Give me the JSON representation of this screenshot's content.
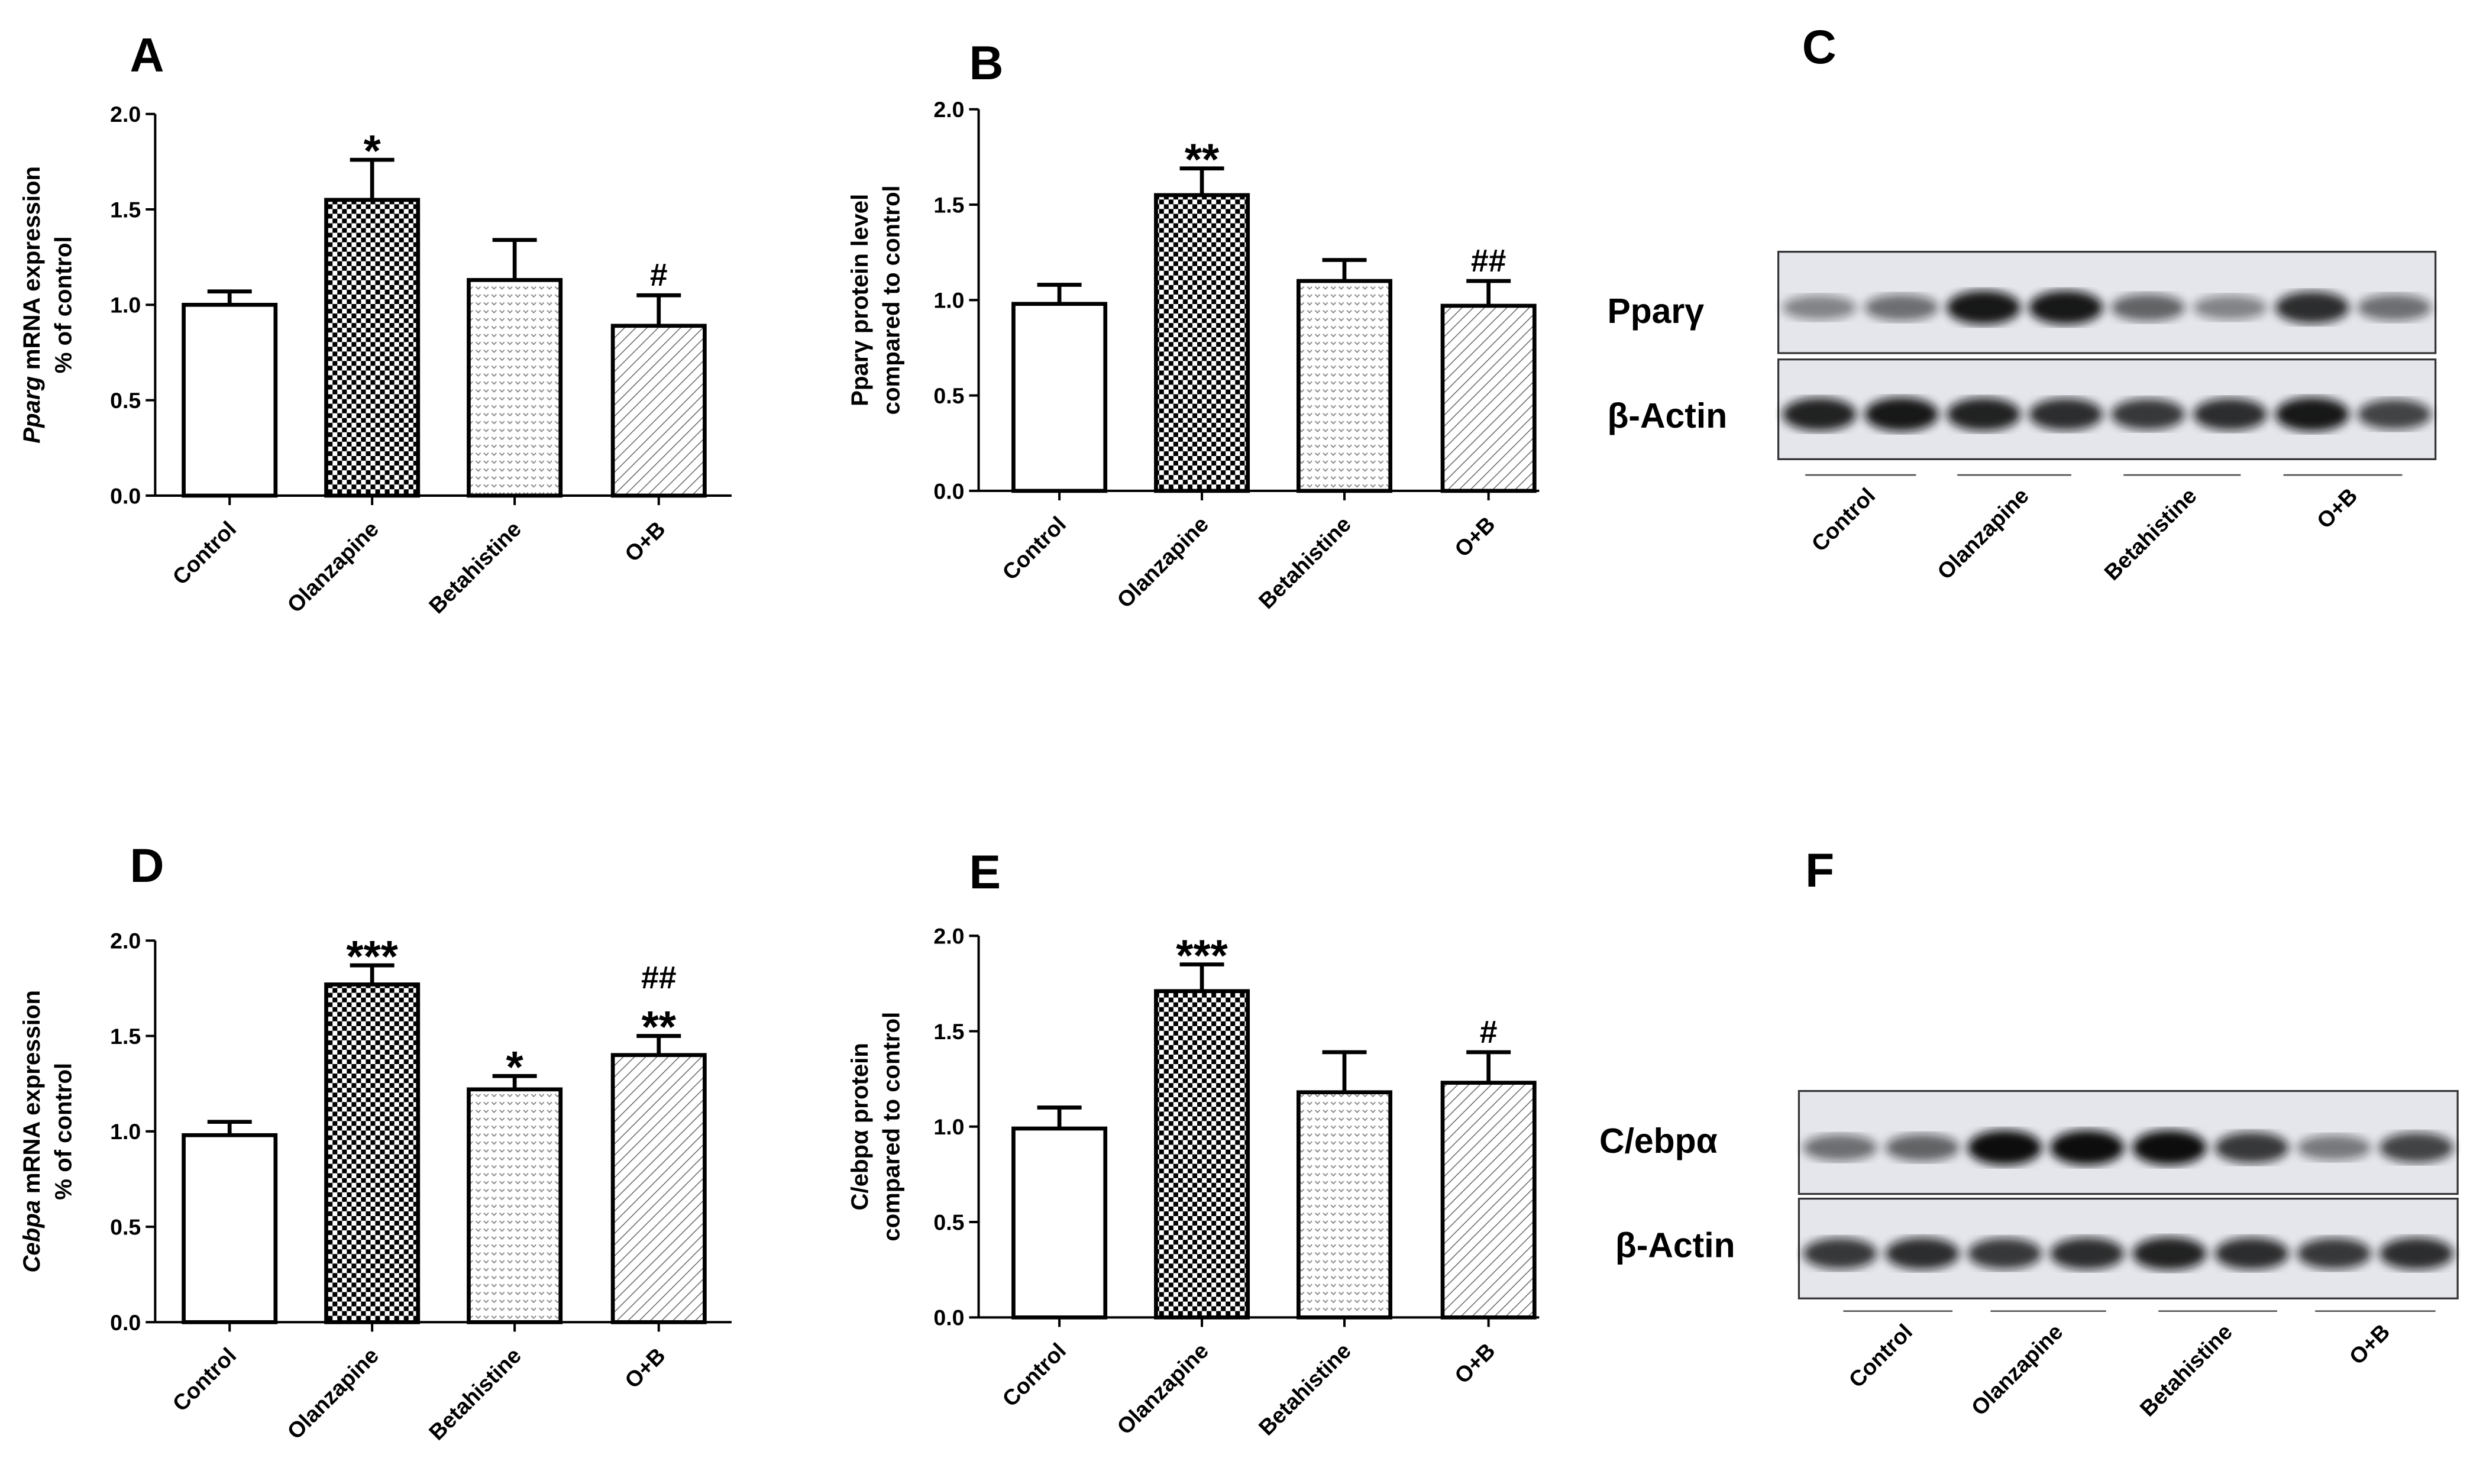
{
  "chart_data": [
    {
      "panel": "A",
      "type": "bar",
      "ylabel": [
        [
          "Pparg",
          "mRNA expression"
        ],
        [
          "% of control"
        ]
      ],
      "ylabel_italic_first": true,
      "categories": [
        "Control",
        "Olanzapine",
        "Betahistine",
        "O+B"
      ],
      "values": [
        1.0,
        1.55,
        1.13,
        0.89
      ],
      "errors": [
        0.07,
        0.21,
        0.21,
        0.16
      ],
      "annotations": [
        null,
        [
          "*"
        ],
        null,
        [
          "#"
        ]
      ],
      "patterns": [
        "none",
        "checker",
        "dots",
        "hatch"
      ],
      "ylim": [
        0,
        2
      ],
      "yticks": [
        {
          "value": 0,
          "label": "0.0"
        },
        {
          "value": 0.5,
          "label": "0.5"
        },
        {
          "value": 1,
          "label": "1.0"
        },
        {
          "value": 1.5,
          "label": "1.5"
        },
        {
          "value": 2,
          "label": "2.0"
        }
      ]
    },
    {
      "panel": "B",
      "type": "bar",
      "ylabel": [
        [
          "Pparγ protein level"
        ],
        [
          "compared to control"
        ]
      ],
      "ylabel_italic_first": false,
      "categories": [
        "Control",
        "Olanzapine",
        "Betahistine",
        "O+B"
      ],
      "values": [
        0.98,
        1.55,
        1.1,
        0.97
      ],
      "errors": [
        0.1,
        0.14,
        0.11,
        0.13
      ],
      "annotations": [
        null,
        [
          "**"
        ],
        null,
        [
          "##"
        ]
      ],
      "patterns": [
        "none",
        "checker",
        "dots",
        "hatch"
      ],
      "ylim": [
        0,
        2
      ],
      "yticks": [
        {
          "value": 0,
          "label": "0.0"
        },
        {
          "value": 0.5,
          "label": "0.5"
        },
        {
          "value": 1,
          "label": "1.0"
        },
        {
          "value": 1.5,
          "label": "1.5"
        },
        {
          "value": 2,
          "label": "2.0"
        }
      ]
    },
    {
      "panel": "D",
      "type": "bar",
      "ylabel": [
        [
          "Cebpa",
          "mRNA expression"
        ],
        [
          "% of control"
        ]
      ],
      "ylabel_italic_first": true,
      "categories": [
        "Control",
        "Olanzapine",
        "Betahistine",
        "O+B"
      ],
      "values": [
        0.98,
        1.77,
        1.22,
        1.4
      ],
      "errors": [
        0.07,
        0.1,
        0.07,
        0.1
      ],
      "annotations": [
        null,
        [
          "***"
        ],
        [
          "*"
        ],
        [
          "##",
          "**"
        ]
      ],
      "patterns": [
        "none",
        "checker",
        "dots",
        "hatch"
      ],
      "ylim": [
        0,
        2
      ],
      "yticks": [
        {
          "value": 0,
          "label": "0.0"
        },
        {
          "value": 0.5,
          "label": "0.5"
        },
        {
          "value": 1,
          "label": "1.0"
        },
        {
          "value": 1.5,
          "label": "1.5"
        },
        {
          "value": 2,
          "label": "2.0"
        }
      ]
    },
    {
      "panel": "E",
      "type": "bar",
      "ylabel": [
        [
          "C/ebpα protein"
        ],
        [
          "compared to control"
        ]
      ],
      "ylabel_italic_first": false,
      "categories": [
        "Control",
        "Olanzapine",
        "Betahistine",
        "O+B"
      ],
      "values": [
        0.99,
        1.71,
        1.18,
        1.23
      ],
      "errors": [
        0.11,
        0.14,
        0.21,
        0.16
      ],
      "annotations": [
        null,
        [
          "***"
        ],
        null,
        [
          "#"
        ]
      ],
      "patterns": [
        "none",
        "checker",
        "dots",
        "hatch"
      ],
      "ylim": [
        0,
        2
      ],
      "yticks": [
        {
          "value": 0,
          "label": "0.0"
        },
        {
          "value": 0.5,
          "label": "0.5"
        },
        {
          "value": 1,
          "label": "1.0"
        },
        {
          "value": 1.5,
          "label": "1.5"
        },
        {
          "value": 2,
          "label": "2.0"
        }
      ]
    }
  ],
  "blots": [
    {
      "panel": "C",
      "bands": [
        "Pparγ",
        "β-Actin"
      ],
      "groups": [
        "Control",
        "Olanzapine",
        "Betahistine",
        "O+B"
      ]
    },
    {
      "panel": "F",
      "bands": [
        "C/ebpα",
        "β-Actin"
      ],
      "groups": [
        "Control",
        "Olanzapine",
        "Betahistine",
        "O+B"
      ]
    }
  ]
}
